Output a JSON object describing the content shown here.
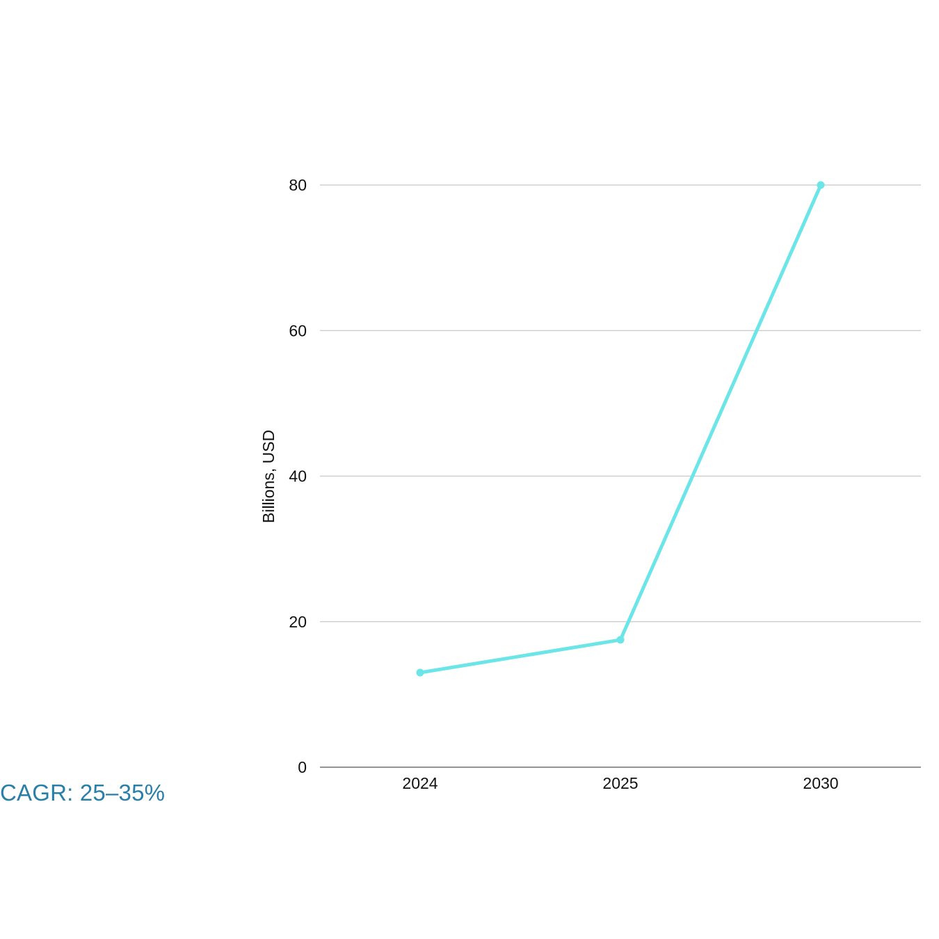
{
  "colors": {
    "line": "#6ce5e8",
    "grid": "#c8c8c8",
    "axis": "#555555",
    "annotation": "#2a7fa8",
    "text": "#111111"
  },
  "chart_data": {
    "type": "line",
    "categories": [
      "2024",
      "2025",
      "2030"
    ],
    "series": [
      {
        "values": [
          13,
          17.5,
          80
        ]
      }
    ],
    "ylabel": "Billions, USD",
    "xlabel": "",
    "ylim": [
      0,
      80
    ],
    "yticks": [
      0,
      20,
      40,
      60,
      80
    ],
    "grid": true,
    "legend": "none"
  },
  "annotation": {
    "text": "CAGR: 25–35%"
  }
}
